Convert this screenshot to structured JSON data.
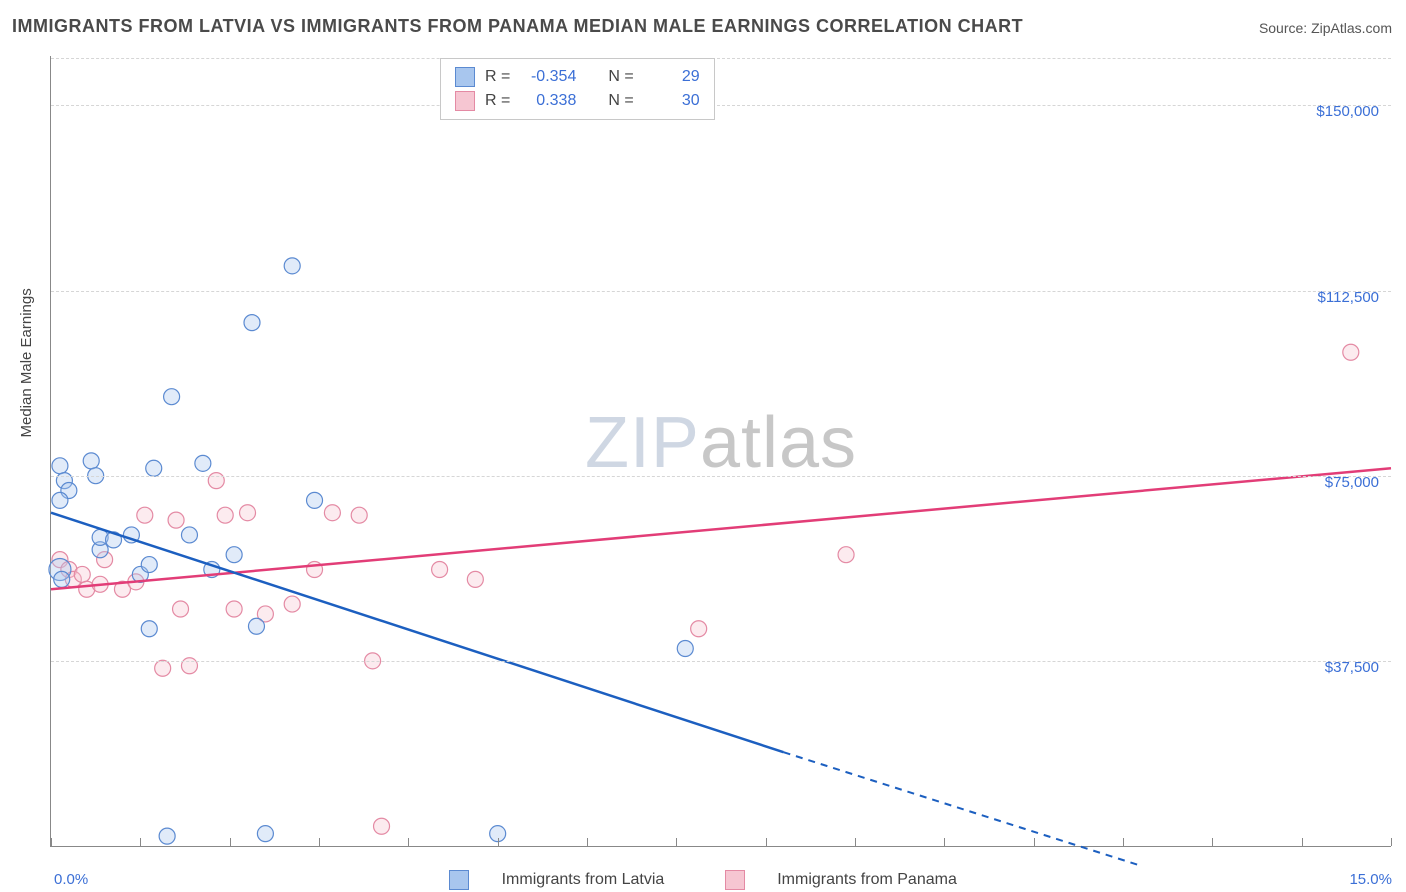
{
  "title": "IMMIGRANTS FROM LATVIA VS IMMIGRANTS FROM PANAMA MEDIAN MALE EARNINGS CORRELATION CHART",
  "source": "Source: ZipAtlas.com",
  "watermark": {
    "a": "ZIP",
    "b": "atlas"
  },
  "ylabel": "Median Male Earnings",
  "chart": {
    "type": "scatter",
    "xlim": [
      0.0,
      15.0
    ],
    "ylim": [
      0,
      160000
    ],
    "yticks": [
      37500,
      75000,
      112500,
      150000
    ],
    "ytick_labels": [
      "$37,500",
      "$75,000",
      "$112,500",
      "$150,000"
    ],
    "xticks_minor": [
      0,
      1,
      2,
      3,
      4,
      5,
      6,
      7,
      8,
      9,
      10,
      11,
      12,
      13,
      14,
      15
    ],
    "xlim_labels": [
      "0.0%",
      "15.0%"
    ],
    "background_color": "#ffffff",
    "grid_color": "#d6d6d6",
    "marker_radius": 8,
    "marker_radius_big": 11
  },
  "series": {
    "latvia": {
      "label": "Immigrants from Latvia",
      "colors": {
        "fill": "#a8c6ee",
        "stroke": "#5b8ad1",
        "line": "#1c5fc0"
      },
      "R": "-0.354",
      "N": "29",
      "trend": {
        "solid": [
          [
            0.0,
            67500
          ],
          [
            8.2,
            19000
          ]
        ],
        "dashed": [
          [
            8.2,
            19000
          ],
          [
            12.2,
            -4000
          ]
        ]
      },
      "points": [
        {
          "x": 0.1,
          "y": 77000
        },
        {
          "x": 0.15,
          "y": 74000
        },
        {
          "x": 0.2,
          "y": 72000
        },
        {
          "x": 0.1,
          "y": 70000
        },
        {
          "x": 0.1,
          "y": 56000,
          "big": true
        },
        {
          "x": 0.12,
          "y": 54000
        },
        {
          "x": 0.45,
          "y": 78000
        },
        {
          "x": 0.5,
          "y": 75000
        },
        {
          "x": 0.55,
          "y": 60000
        },
        {
          "x": 0.55,
          "y": 62500
        },
        {
          "x": 0.9,
          "y": 63000
        },
        {
          "x": 1.0,
          "y": 55000
        },
        {
          "x": 1.1,
          "y": 57000
        },
        {
          "x": 1.15,
          "y": 76500
        },
        {
          "x": 1.1,
          "y": 44000
        },
        {
          "x": 1.3,
          "y": 2000
        },
        {
          "x": 1.35,
          "y": 91000
        },
        {
          "x": 1.55,
          "y": 63000
        },
        {
          "x": 1.7,
          "y": 77500
        },
        {
          "x": 1.8,
          "y": 56000
        },
        {
          "x": 2.05,
          "y": 59000
        },
        {
          "x": 2.25,
          "y": 106000
        },
        {
          "x": 2.3,
          "y": 44500
        },
        {
          "x": 2.4,
          "y": 2500
        },
        {
          "x": 2.7,
          "y": 117500
        },
        {
          "x": 2.95,
          "y": 70000
        },
        {
          "x": 5.0,
          "y": 2500
        },
        {
          "x": 7.1,
          "y": 40000
        },
        {
          "x": 0.7,
          "y": 62000
        }
      ]
    },
    "panama": {
      "label": "Immigrants from Panama",
      "colors": {
        "fill": "#f6c6d2",
        "stroke": "#e48aa4",
        "line": "#e23d77"
      },
      "R": "0.338",
      "N": "30",
      "trend": {
        "solid": [
          [
            0.0,
            52000
          ],
          [
            15.0,
            76500
          ]
        ]
      },
      "points": [
        {
          "x": 0.1,
          "y": 58000
        },
        {
          "x": 0.2,
          "y": 56000
        },
        {
          "x": 0.25,
          "y": 54000
        },
        {
          "x": 0.35,
          "y": 55000
        },
        {
          "x": 0.4,
          "y": 52000
        },
        {
          "x": 0.55,
          "y": 53000
        },
        {
          "x": 0.6,
          "y": 58000
        },
        {
          "x": 0.8,
          "y": 52000
        },
        {
          "x": 0.95,
          "y": 53500
        },
        {
          "x": 1.05,
          "y": 67000
        },
        {
          "x": 1.25,
          "y": 36000
        },
        {
          "x": 1.4,
          "y": 66000
        },
        {
          "x": 1.45,
          "y": 48000
        },
        {
          "x": 1.55,
          "y": 36500
        },
        {
          "x": 1.85,
          "y": 74000
        },
        {
          "x": 1.95,
          "y": 67000
        },
        {
          "x": 2.05,
          "y": 48000
        },
        {
          "x": 2.2,
          "y": 67500
        },
        {
          "x": 2.4,
          "y": 47000
        },
        {
          "x": 2.7,
          "y": 49000
        },
        {
          "x": 2.95,
          "y": 56000
        },
        {
          "x": 3.15,
          "y": 67500
        },
        {
          "x": 3.45,
          "y": 67000
        },
        {
          "x": 3.6,
          "y": 37500
        },
        {
          "x": 3.7,
          "y": 4000
        },
        {
          "x": 4.35,
          "y": 56000
        },
        {
          "x": 4.75,
          "y": 54000
        },
        {
          "x": 7.25,
          "y": 44000
        },
        {
          "x": 8.9,
          "y": 59000
        },
        {
          "x": 14.55,
          "y": 100000
        }
      ]
    }
  },
  "legend_stats_labels": {
    "R": "R =",
    "N": "N ="
  }
}
